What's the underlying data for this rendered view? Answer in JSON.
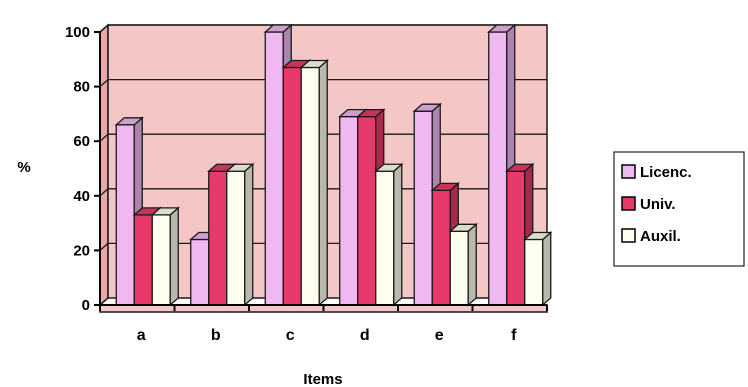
{
  "chart_data": {
    "type": "bar",
    "categories": [
      "a",
      "b",
      "c",
      "d",
      "e",
      "f"
    ],
    "series": [
      {
        "name": "Licenc.",
        "values": [
          66,
          24,
          100,
          69,
          71,
          100
        ]
      },
      {
        "name": "Univ.",
        "values": [
          33,
          49,
          87,
          69,
          42,
          49
        ]
      },
      {
        "name": "Auxil.",
        "values": [
          33,
          49,
          87,
          49,
          27,
          24
        ]
      }
    ],
    "xlabel": "Items",
    "ylabel": "%",
    "ylim": [
      0,
      100
    ],
    "yticks": [
      "0",
      "20",
      "40",
      "60",
      "80",
      "100"
    ],
    "grid": true,
    "legend_position": "right",
    "colors": {
      "plot_background": "#f4c6c6",
      "series": [
        "#f0b8f0",
        "#e83a6a",
        "#fffff0"
      ],
      "outline": "#1a1a1a"
    }
  }
}
